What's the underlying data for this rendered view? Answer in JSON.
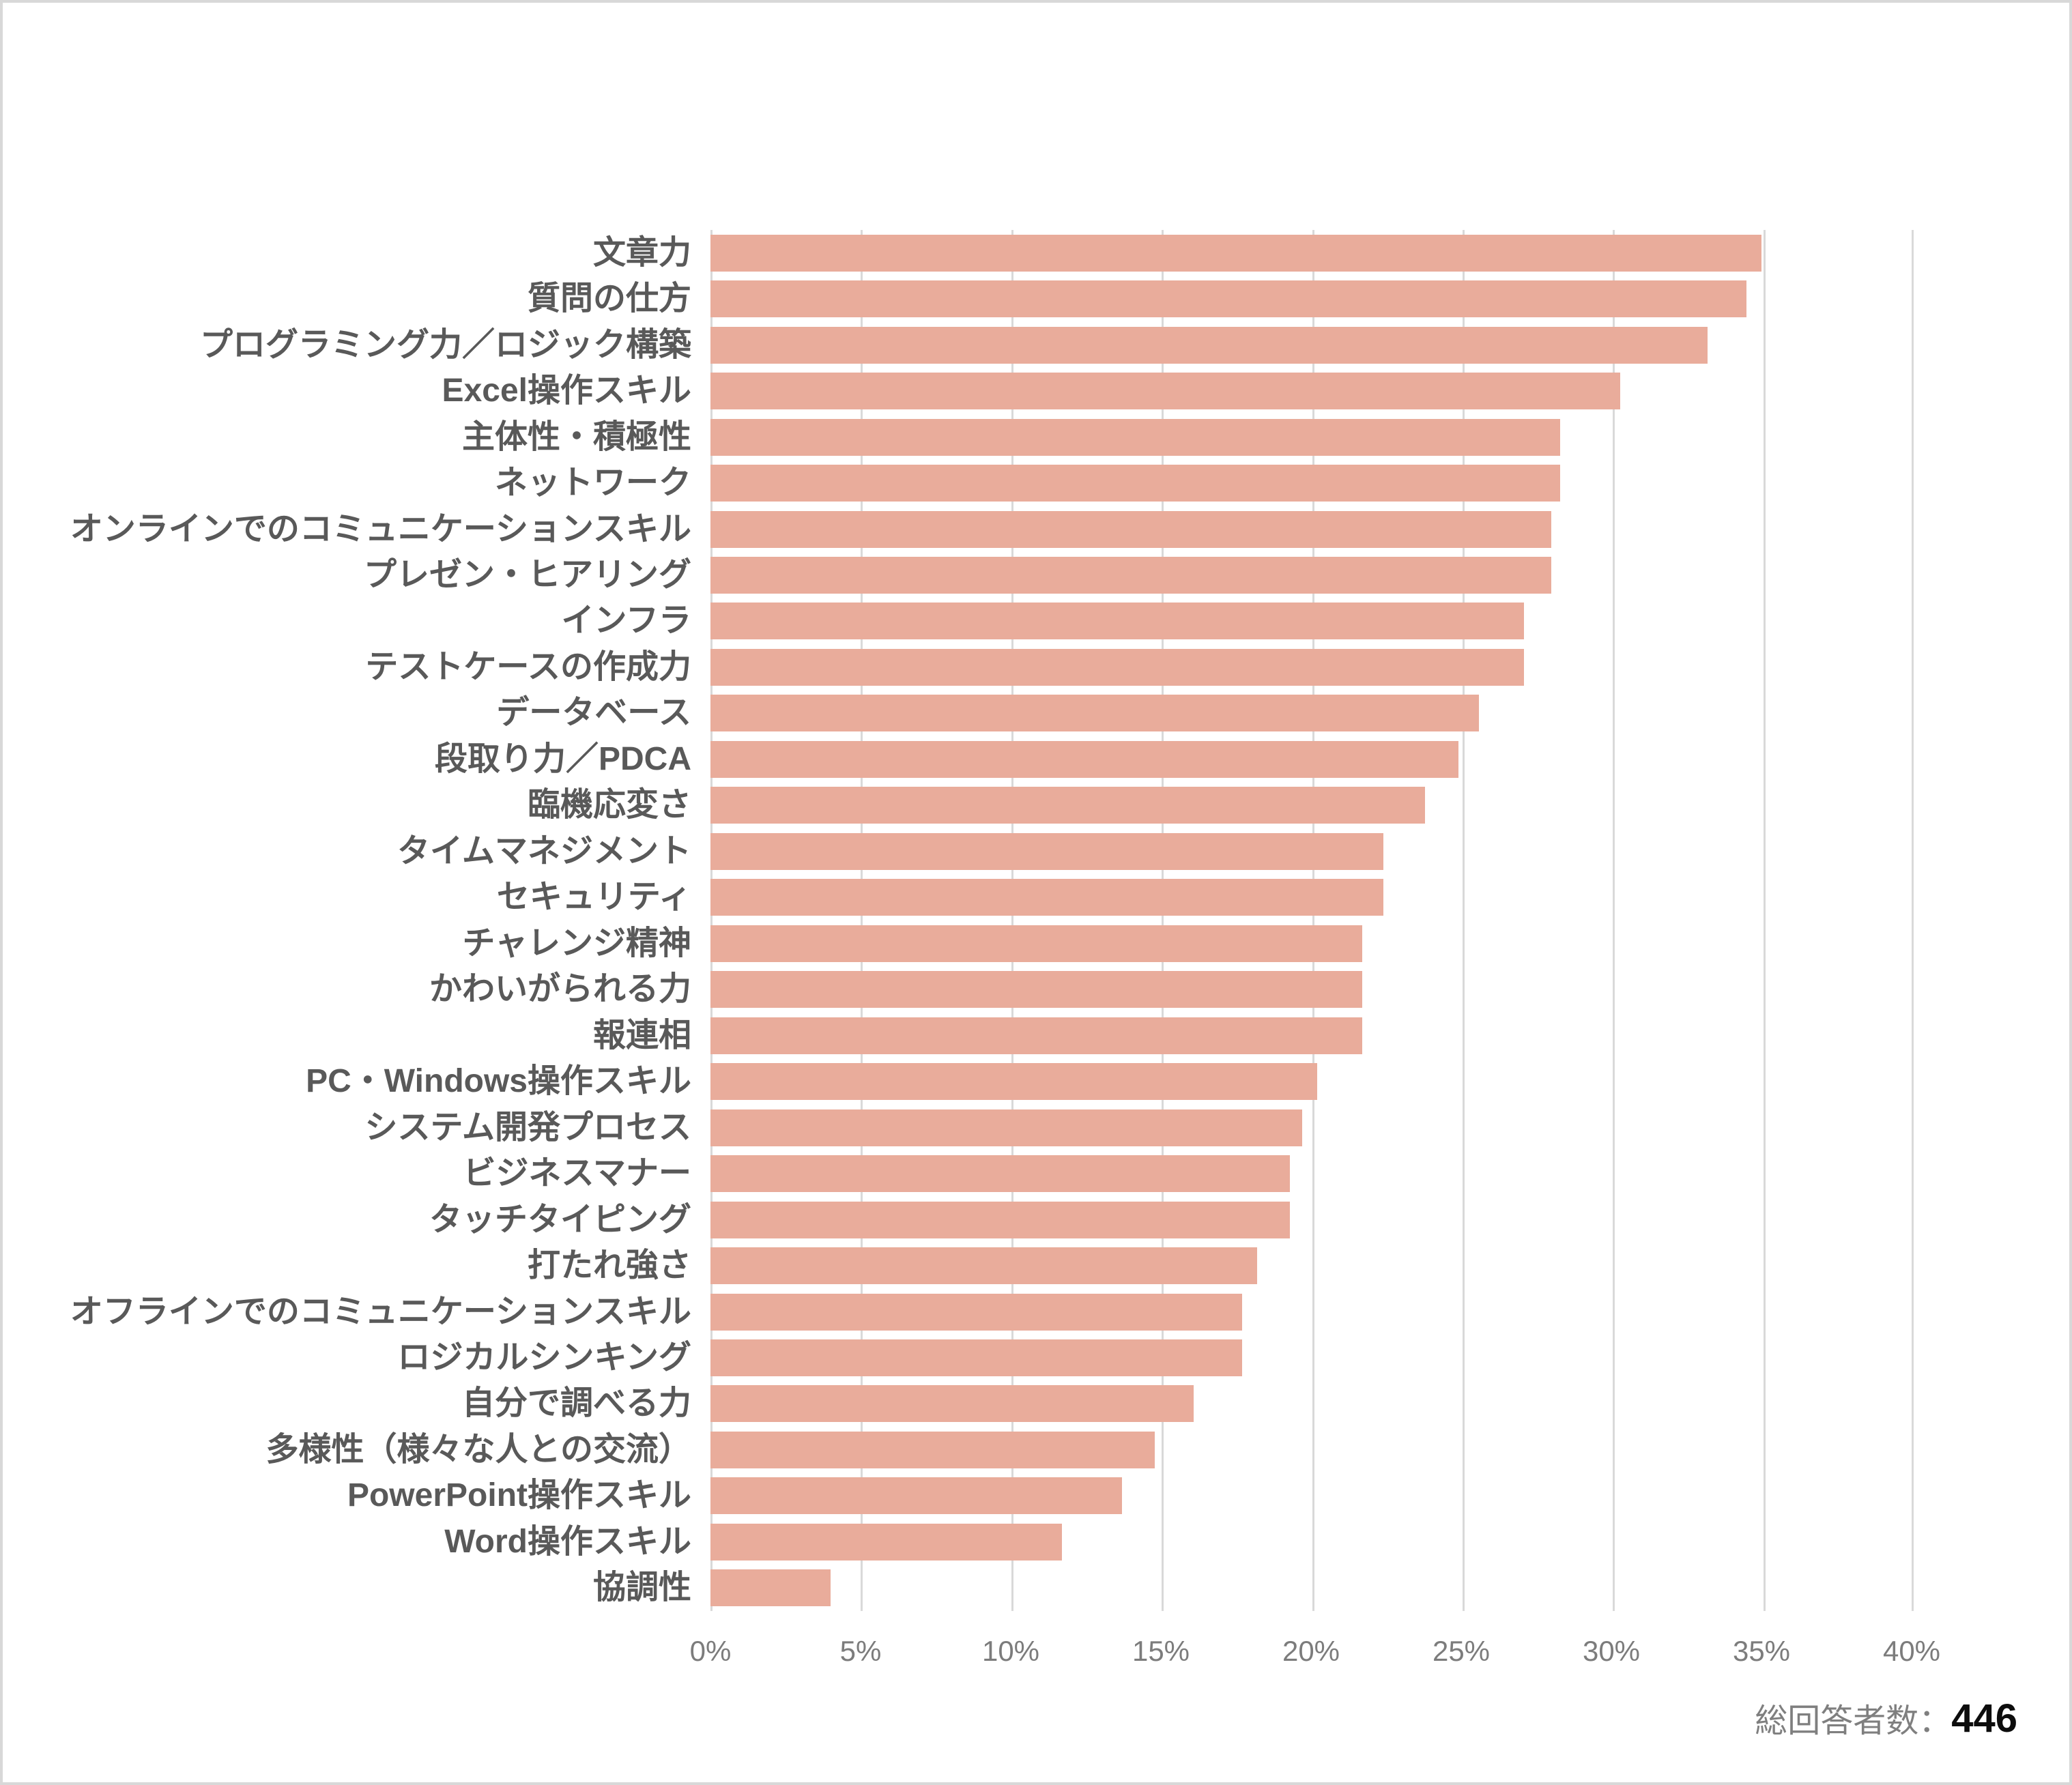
{
  "chart_data": {
    "type": "bar",
    "orientation": "horizontal",
    "title": "",
    "categories": [
      "文章力",
      "質問の仕方",
      "プログラミング力／ロジック構築",
      "Excel操作スキル",
      "主体性・積極性",
      "ネットワーク",
      "オンラインでのコミュニケーションスキル",
      "プレゼン・ヒアリング",
      "インフラ",
      "テストケースの作成力",
      "データベース",
      "段取り力／PDCA",
      "臨機応変さ",
      "タイムマネジメント",
      "セキュリティ",
      "チャレンジ精神",
      "かわいがられる力",
      "報連相",
      "PC・Windows操作スキル",
      "システム開発プロセス",
      "ビジネスマナー",
      "タッチタイピング",
      "打たれ強さ",
      "オフラインでのコミュニケーションスキル",
      "ロジカルシンキング",
      "自分で調べる力",
      "多様性（様々な人との交流）",
      "PowerPoint操作スキル",
      "Word操作スキル",
      "協調性"
    ],
    "values": [
      35.0,
      34.5,
      33.2,
      30.3,
      28.3,
      28.3,
      28.0,
      28.0,
      27.1,
      27.1,
      25.6,
      24.9,
      23.8,
      22.4,
      22.4,
      21.7,
      21.7,
      21.7,
      20.2,
      19.7,
      19.3,
      19.3,
      18.2,
      17.7,
      17.7,
      16.1,
      14.8,
      13.7,
      11.7,
      4.0
    ],
    "unit": "%",
    "xlabel": "",
    "ylabel": "",
    "xlim": [
      0,
      40
    ],
    "x_ticks": [
      "0%",
      "5%",
      "10%",
      "15%",
      "20%",
      "25%",
      "30%",
      "35%",
      "40%"
    ],
    "grid": true,
    "legend_position": "none",
    "bar_color": "#E9AC9B",
    "gridline_color": "#D9D9D9",
    "category_label_color": "#595959",
    "tick_label_color": "#7C7C7C"
  },
  "footer": {
    "label": "総回答者数：",
    "value": "446"
  }
}
